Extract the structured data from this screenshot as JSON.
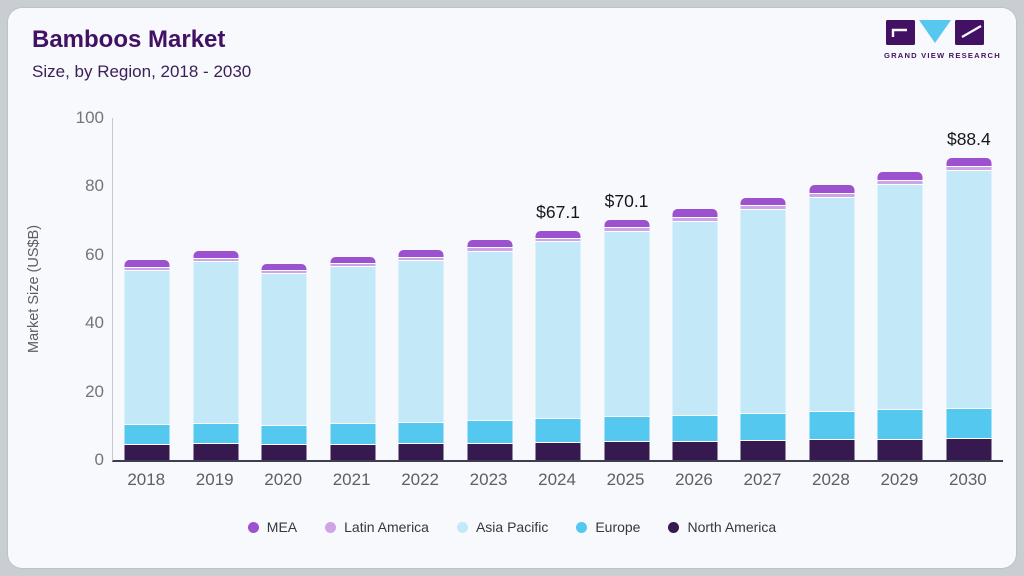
{
  "header": {
    "title": "Bamboos Market",
    "subtitle": "Size, by Region, 2018 - 2030"
  },
  "logo": {
    "text": "GRAND VIEW RESEARCH",
    "purple": "#431164",
    "blue": "#56c7ee"
  },
  "chart_data": {
    "type": "bar",
    "stacked": true,
    "title": "Bamboos Market Size, by Region, 2018 - 2030",
    "xlabel": "",
    "ylabel": "Market Size (US$B)",
    "ylim": [
      0,
      100
    ],
    "yticks": [
      0,
      20,
      40,
      60,
      80,
      100
    ],
    "grid": false,
    "legend_position": "bottom",
    "categories": [
      "2018",
      "2019",
      "2020",
      "2021",
      "2022",
      "2023",
      "2024",
      "2025",
      "2026",
      "2027",
      "2028",
      "2029",
      "2030"
    ],
    "series": [
      {
        "name": "North America",
        "color": "#36194f",
        "values": [
          4.8,
          4.9,
          4.7,
          4.8,
          5.0,
          5.1,
          5.3,
          5.5,
          5.6,
          5.8,
          6.0,
          6.2,
          6.4
        ]
      },
      {
        "name": "Europe",
        "color": "#55c8f0",
        "values": [
          5.7,
          5.9,
          5.6,
          5.9,
          6.1,
          6.5,
          6.9,
          7.3,
          7.6,
          7.9,
          8.3,
          8.6,
          8.9
        ]
      },
      {
        "name": "Asia Pacific",
        "color": "#c3e9f9",
        "values": [
          45.1,
          47.5,
          44.3,
          46.0,
          47.4,
          49.6,
          51.8,
          54.2,
          56.8,
          59.7,
          62.6,
          65.9,
          69.5
        ]
      },
      {
        "name": "Latin America",
        "color": "#cfa3e8",
        "values": [
          0.9,
          0.9,
          0.9,
          0.9,
          1.0,
          1.0,
          1.0,
          1.0,
          1.1,
          1.1,
          1.1,
          1.2,
          1.2
        ]
      },
      {
        "name": "MEA",
        "color": "#9c51cf",
        "values": [
          1.9,
          2.0,
          1.8,
          1.9,
          2.0,
          2.0,
          2.1,
          2.1,
          2.2,
          2.2,
          2.3,
          2.3,
          2.4
        ]
      }
    ],
    "totals": [
      58.4,
      61.2,
      57.3,
      59.5,
      61.5,
      64.2,
      67.1,
      70.1,
      73.3,
      76.7,
      80.3,
      84.2,
      88.4
    ],
    "annotations": {
      "2024": "$67.1",
      "2025": "$70.1",
      "2030": "$88.4"
    },
    "legend_order": [
      "MEA",
      "Latin America",
      "Asia Pacific",
      "Europe",
      "North America"
    ]
  },
  "colors": {
    "card_bg": "#f7f9fc",
    "outer_bg": "#c9ced3",
    "axis_line": "#c5c7d1",
    "baseline": "#3e3e50",
    "tick_text": "#74747d",
    "annotation_text": "#17171f"
  }
}
